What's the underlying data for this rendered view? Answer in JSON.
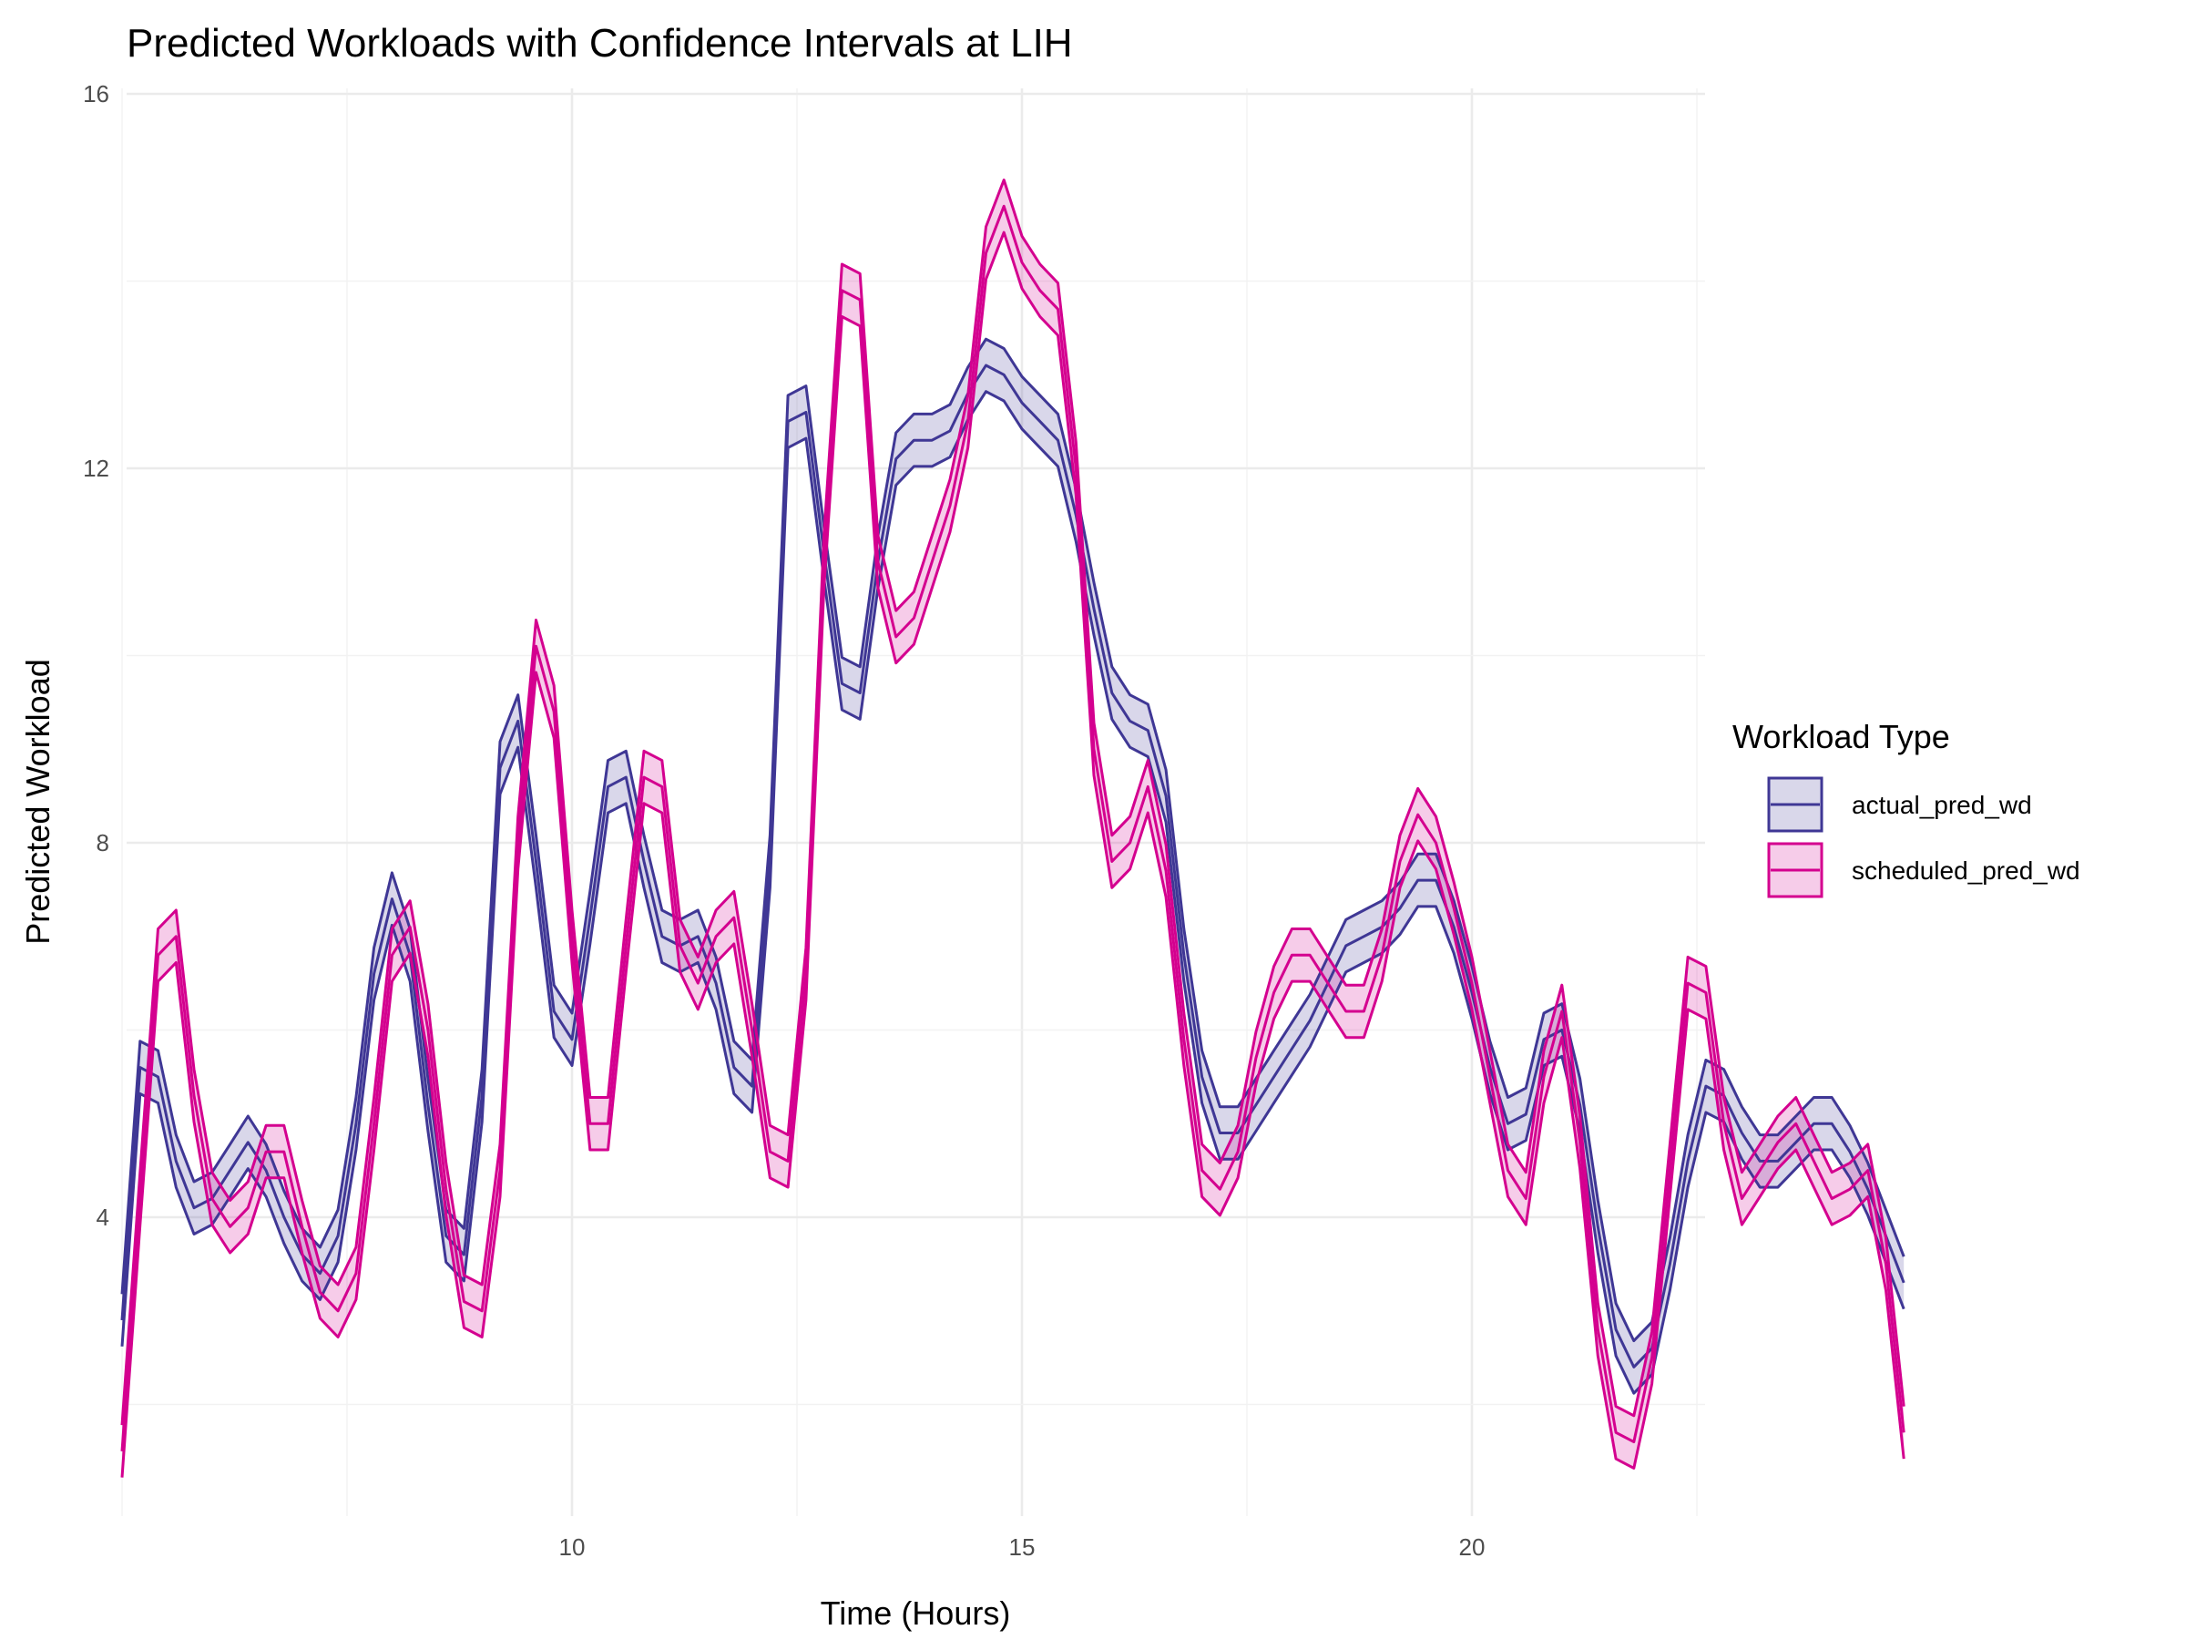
{
  "chart_data": {
    "type": "line",
    "title": "Predicted Workloads with Confidence Intervals at LIH",
    "xlabel": "Time (Hours)",
    "ylabel": "Predicted Workload",
    "xlim": [
      5,
      22.6
    ],
    "ylim": [
      1.0,
      16.0
    ],
    "x_ticks": [
      10,
      15,
      20
    ],
    "y_ticks": [
      4,
      8,
      12,
      16
    ],
    "grid": true,
    "legend": {
      "title": "Workload Type",
      "position": "right"
    },
    "series": [
      {
        "name": "actual_pred_wd",
        "color": "#3f3795",
        "fill": "#3f3795",
        "points": [
          [
            5.0,
            2.9
          ],
          [
            5.2,
            5.6
          ],
          [
            5.4,
            5.5
          ],
          [
            5.6,
            4.6
          ],
          [
            5.8,
            4.1
          ],
          [
            6.0,
            4.2
          ],
          [
            6.2,
            4.5
          ],
          [
            6.4,
            4.8
          ],
          [
            6.6,
            4.5
          ],
          [
            6.8,
            4.0
          ],
          [
            7.0,
            3.6
          ],
          [
            7.2,
            3.4
          ],
          [
            7.4,
            3.8
          ],
          [
            7.6,
            5.0
          ],
          [
            7.8,
            6.6
          ],
          [
            8.0,
            7.4
          ],
          [
            8.2,
            6.8
          ],
          [
            8.4,
            5.2
          ],
          [
            8.6,
            3.8
          ],
          [
            8.8,
            3.6
          ],
          [
            9.0,
            5.3
          ],
          [
            9.2,
            8.8
          ],
          [
            9.4,
            9.3
          ],
          [
            9.6,
            7.8
          ],
          [
            9.8,
            6.2
          ],
          [
            10.0,
            5.9
          ],
          [
            10.2,
            7.2
          ],
          [
            10.4,
            8.6
          ],
          [
            10.6,
            8.7
          ],
          [
            10.8,
            7.8
          ],
          [
            11.0,
            7.0
          ],
          [
            11.2,
            6.9
          ],
          [
            11.4,
            7.0
          ],
          [
            11.6,
            6.5
          ],
          [
            11.8,
            5.6
          ],
          [
            12.0,
            5.4
          ],
          [
            12.2,
            7.8
          ],
          [
            12.4,
            12.5
          ],
          [
            12.6,
            12.6
          ],
          [
            12.8,
            11.1
          ],
          [
            13.0,
            9.7
          ],
          [
            13.2,
            9.6
          ],
          [
            13.4,
            11.0
          ],
          [
            13.6,
            12.1
          ],
          [
            13.8,
            12.3
          ],
          [
            14.0,
            12.3
          ],
          [
            14.2,
            12.4
          ],
          [
            14.4,
            12.8
          ],
          [
            14.6,
            13.1
          ],
          [
            14.8,
            13.0
          ],
          [
            15.0,
            12.7
          ],
          [
            15.2,
            12.5
          ],
          [
            15.4,
            12.3
          ],
          [
            15.6,
            11.5
          ],
          [
            15.8,
            10.5
          ],
          [
            16.0,
            9.6
          ],
          [
            16.2,
            9.3
          ],
          [
            16.4,
            9.2
          ],
          [
            16.6,
            8.5
          ],
          [
            16.8,
            6.8
          ],
          [
            17.0,
            5.5
          ],
          [
            17.2,
            4.9
          ],
          [
            17.4,
            4.9
          ],
          [
            17.6,
            5.2
          ],
          [
            17.8,
            5.5
          ],
          [
            18.0,
            5.8
          ],
          [
            18.2,
            6.1
          ],
          [
            18.4,
            6.5
          ],
          [
            18.6,
            6.9
          ],
          [
            18.8,
            7.0
          ],
          [
            19.0,
            7.1
          ],
          [
            19.2,
            7.3
          ],
          [
            19.4,
            7.6
          ],
          [
            19.6,
            7.6
          ],
          [
            19.8,
            7.1
          ],
          [
            20.0,
            6.4
          ],
          [
            20.2,
            5.6
          ],
          [
            20.4,
            5.0
          ],
          [
            20.6,
            5.1
          ],
          [
            20.8,
            5.9
          ],
          [
            21.0,
            6.0
          ],
          [
            21.2,
            5.2
          ],
          [
            21.4,
            3.9
          ],
          [
            21.6,
            2.8
          ],
          [
            21.8,
            2.4
          ],
          [
            22.0,
            2.6
          ],
          [
            22.2,
            3.5
          ],
          [
            22.4,
            4.6
          ],
          [
            22.6,
            5.4
          ],
          [
            22.8,
            5.3
          ],
          [
            23.0,
            4.9
          ],
          [
            23.2,
            4.6
          ],
          [
            23.4,
            4.6
          ],
          [
            23.6,
            4.8
          ],
          [
            23.8,
            5.0
          ],
          [
            24.0,
            5.0
          ],
          [
            24.2,
            4.7
          ],
          [
            24.4,
            4.3
          ],
          [
            24.6,
            3.8
          ],
          [
            24.8,
            3.3
          ]
        ]
      },
      {
        "name": "scheduled_pred_wd",
        "color": "#d4008f",
        "fill": "#d4008f",
        "points": [
          [
            5.0,
            1.5
          ],
          [
            5.2,
            4.2
          ],
          [
            5.4,
            6.8
          ],
          [
            5.6,
            7.0
          ],
          [
            5.8,
            5.3
          ],
          [
            6.0,
            4.2
          ],
          [
            6.2,
            3.9
          ],
          [
            6.4,
            4.1
          ],
          [
            6.6,
            4.7
          ],
          [
            6.8,
            4.7
          ],
          [
            7.0,
            3.9
          ],
          [
            7.2,
            3.2
          ],
          [
            7.4,
            3.0
          ],
          [
            7.6,
            3.4
          ],
          [
            7.8,
            5.0
          ],
          [
            8.0,
            6.8
          ],
          [
            8.2,
            7.1
          ],
          [
            8.4,
            6.0
          ],
          [
            8.6,
            4.3
          ],
          [
            8.8,
            3.1
          ],
          [
            9.0,
            3.0
          ],
          [
            9.2,
            4.5
          ],
          [
            9.4,
            8.0
          ],
          [
            9.6,
            10.1
          ],
          [
            9.8,
            9.4
          ],
          [
            10.0,
            7.0
          ],
          [
            10.2,
            5.0
          ],
          [
            10.4,
            5.0
          ],
          [
            10.6,
            6.9
          ],
          [
            10.8,
            8.7
          ],
          [
            11.0,
            8.6
          ],
          [
            11.2,
            6.9
          ],
          [
            11.4,
            6.5
          ],
          [
            11.6,
            7.0
          ],
          [
            11.8,
            7.2
          ],
          [
            12.0,
            6.0
          ],
          [
            12.2,
            4.7
          ],
          [
            12.4,
            4.6
          ],
          [
            12.6,
            6.6
          ],
          [
            12.8,
            11.0
          ],
          [
            13.0,
            13.9
          ],
          [
            13.2,
            13.8
          ],
          [
            13.4,
            11.0
          ],
          [
            13.6,
            10.2
          ],
          [
            13.8,
            10.4
          ],
          [
            14.0,
            11.0
          ],
          [
            14.2,
            11.6
          ],
          [
            14.4,
            12.5
          ],
          [
            14.6,
            14.3
          ],
          [
            14.8,
            14.8
          ],
          [
            15.0,
            14.2
          ],
          [
            15.2,
            13.9
          ],
          [
            15.4,
            13.7
          ],
          [
            15.6,
            12.0
          ],
          [
            15.8,
            9.0
          ],
          [
            16.0,
            7.8
          ],
          [
            16.2,
            8.0
          ],
          [
            16.4,
            8.6
          ],
          [
            16.6,
            7.7
          ],
          [
            16.8,
            5.9
          ],
          [
            17.0,
            4.5
          ],
          [
            17.2,
            4.3
          ],
          [
            17.4,
            4.7
          ],
          [
            17.6,
            5.7
          ],
          [
            17.8,
            6.4
          ],
          [
            18.0,
            6.8
          ],
          [
            18.2,
            6.8
          ],
          [
            18.4,
            6.5
          ],
          [
            18.6,
            6.2
          ],
          [
            18.8,
            6.2
          ],
          [
            19.0,
            6.8
          ],
          [
            19.2,
            7.8
          ],
          [
            19.4,
            8.3
          ],
          [
            19.6,
            8.0
          ],
          [
            19.8,
            7.3
          ],
          [
            20.0,
            6.5
          ],
          [
            20.2,
            5.5
          ],
          [
            20.4,
            4.5
          ],
          [
            20.6,
            4.2
          ],
          [
            20.8,
            5.5
          ],
          [
            21.0,
            6.2
          ],
          [
            21.2,
            4.8
          ],
          [
            21.4,
            2.8
          ],
          [
            21.6,
            1.7
          ],
          [
            21.8,
            1.6
          ],
          [
            22.0,
            2.5
          ],
          [
            22.2,
            4.5
          ],
          [
            22.4,
            6.5
          ],
          [
            22.6,
            6.4
          ],
          [
            22.8,
            5.0
          ],
          [
            23.0,
            4.2
          ],
          [
            23.2,
            4.5
          ],
          [
            23.4,
            4.8
          ],
          [
            23.6,
            5.0
          ],
          [
            23.8,
            4.6
          ],
          [
            24.0,
            4.2
          ],
          [
            24.2,
            4.3
          ],
          [
            24.4,
            4.5
          ],
          [
            24.6,
            3.5
          ],
          [
            24.8,
            1.7
          ]
        ]
      }
    ]
  }
}
